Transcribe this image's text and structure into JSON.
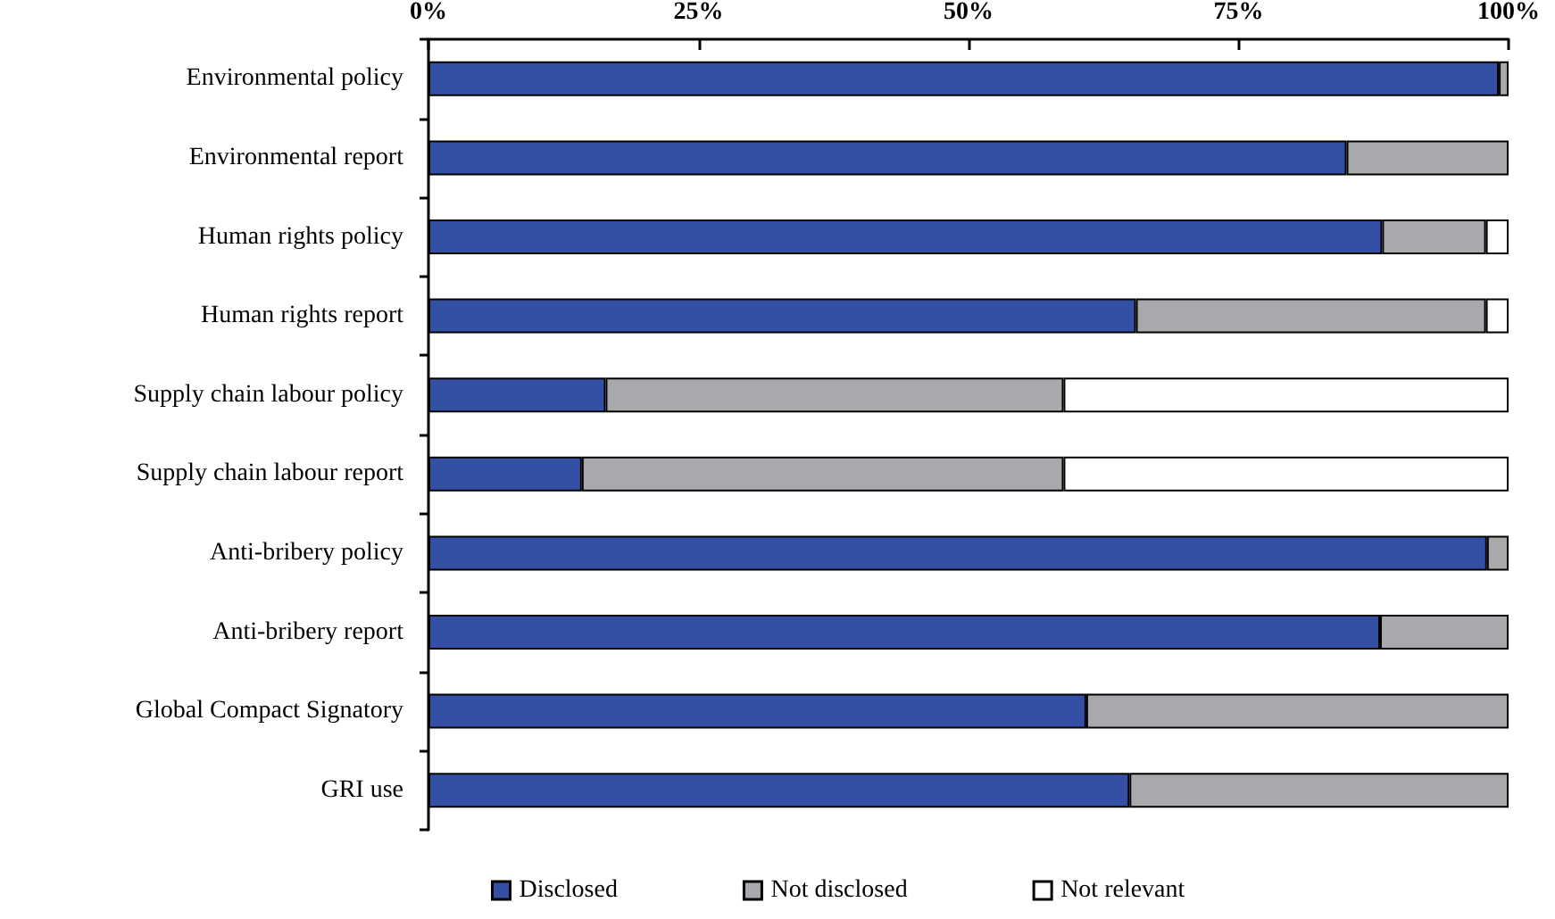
{
  "chart_data": {
    "type": "bar",
    "orientation": "horizontal",
    "stacked": true,
    "categories": [
      "Environmental policy",
      "Environmental report",
      "Human rights policy",
      "Human rights report",
      "Supply chain labour policy",
      "Supply chain labour report",
      "Anti-bribery policy",
      "Anti-bribery report",
      "Global Compact Signatory",
      "GRI use"
    ],
    "series": [
      {
        "name": "Disclosed",
        "color": "#3450a4",
        "values": [
          99.1,
          85.0,
          88.3,
          65.5,
          16.4,
          14.2,
          98.0,
          88.1,
          60.9,
          64.9
        ]
      },
      {
        "name": "Not disclosed",
        "color": "#a8a9ad",
        "values": [
          0.9,
          15.0,
          9.6,
          32.4,
          42.4,
          44.6,
          2.0,
          11.9,
          39.1,
          35.1
        ]
      },
      {
        "name": "Not relevant",
        "color": "#ffffff",
        "values": [
          null,
          null,
          2.1,
          2.1,
          41.2,
          41.2,
          null,
          null,
          null,
          null
        ]
      }
    ],
    "xlim": [
      0,
      100
    ],
    "xticks": [
      {
        "value": 0,
        "label": "0%"
      },
      {
        "value": 25,
        "label": "25%"
      },
      {
        "value": 50,
        "label": "50%"
      },
      {
        "value": 75,
        "label": "75%"
      },
      {
        "value": 100,
        "label": "100%"
      }
    ],
    "grid": false,
    "legend": "bottom"
  }
}
